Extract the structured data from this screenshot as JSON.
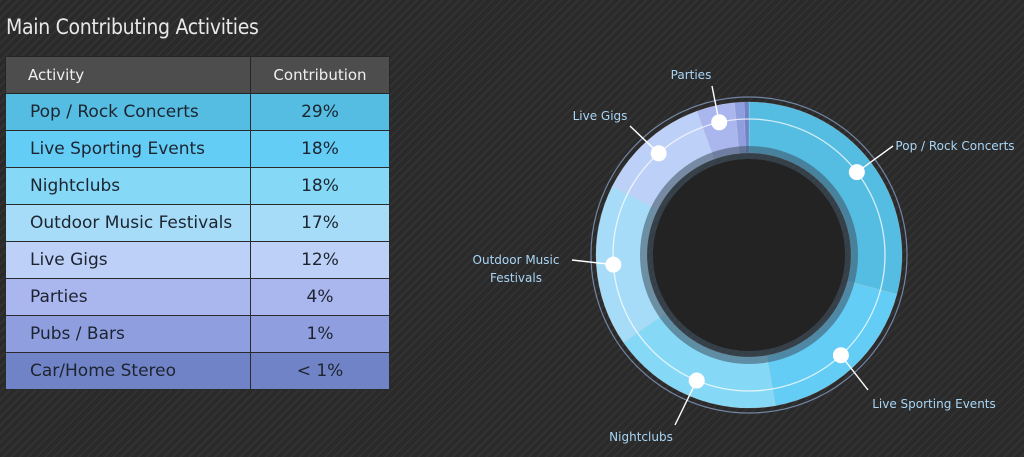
{
  "title": "Main Contributing Activities",
  "table": {
    "headers": [
      "Activity",
      "Contribution"
    ],
    "rows": [
      {
        "activity": "Pop / Rock Concerts",
        "contribution": "29%",
        "color": "#55bde2"
      },
      {
        "activity": "Live Sporting Events",
        "contribution": "18%",
        "color": "#63cdf6"
      },
      {
        "activity": "Nightclubs",
        "contribution": "18%",
        "color": "#86d8f7"
      },
      {
        "activity": "Outdoor Music Festivals",
        "contribution": "17%",
        "color": "#a6dcf7"
      },
      {
        "activity": "Live Gigs",
        "contribution": "12%",
        "color": "#bdd0f7"
      },
      {
        "activity": "Parties",
        "contribution": "4%",
        "color": "#aab6ee"
      },
      {
        "activity": "Pubs / Bars",
        "contribution": "1%",
        "color": "#8f9ede"
      },
      {
        "activity": "Car/Home Stereo",
        "contribution": "< 1%",
        "color": "#6f83c6"
      }
    ]
  },
  "chart_data": {
    "type": "pie",
    "variant": "donut",
    "title": "",
    "slices": [
      {
        "label": "Pop / Rock Concerts",
        "value": 29,
        "color": "#55bde2"
      },
      {
        "label": "Live Sporting Events",
        "value": 18,
        "color": "#63cdf6"
      },
      {
        "label": "Nightclubs",
        "value": 18,
        "color": "#86d8f7"
      },
      {
        "label": "Outdoor Music Festivals",
        "value": 17,
        "color": "#a6dcf7"
      },
      {
        "label": "Live Gigs",
        "value": 12,
        "color": "#bdd0f7"
      },
      {
        "label": "Parties",
        "value": 4,
        "color": "#aab6ee"
      },
      {
        "label": "Pubs / Bars",
        "value": 1,
        "color": "#8f9ede"
      },
      {
        "label": "Car/Home Stereo",
        "value": 0.5,
        "color": "#6f83c6"
      }
    ],
    "labeled_slices": [
      "Pop / Rock Concerts",
      "Live Sporting Events",
      "Nightclubs",
      "Outdoor Music Festivals",
      "Live Gigs",
      "Parties"
    ],
    "label_color": "#a9d6f5"
  }
}
